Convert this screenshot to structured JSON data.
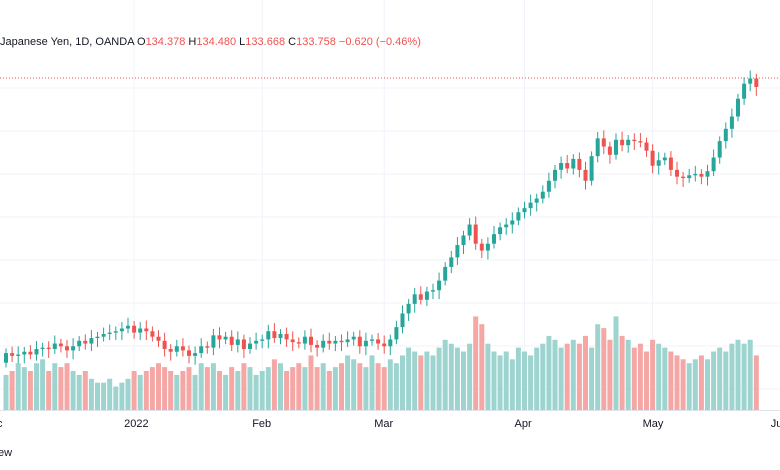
{
  "legend": {
    "symbol_text": "Japanese Yen, 1D, OANDA",
    "o_label": "O",
    "o_value": "134.378",
    "h_label": "H",
    "h_value": "134.480",
    "l_label": "L",
    "l_value": "133.668",
    "c_label": "C",
    "c_value": "133.758",
    "change": "−0.620 (−0.46%)"
  },
  "bottom_text": "ew",
  "colors": {
    "up": "#26a69a",
    "down": "#ef5350",
    "up_vol": "#9ed4cf",
    "down_vol": "#f4a7a5",
    "grid": "#f0f3fa",
    "price_line": "#ef5350"
  },
  "chart_data": {
    "type": "candlestick",
    "x_ticks": [
      {
        "label": "2022",
        "index": 21
      },
      {
        "label": "Feb",
        "index": 42
      },
      {
        "label": "Mar",
        "index": 62
      },
      {
        "label": "Apr",
        "index": 85
      },
      {
        "label": "May",
        "index": 106
      },
      {
        "label": "Jun",
        "index": 127
      }
    ],
    "first_tick_partial": "c",
    "last_close": 133.758,
    "grid": true,
    "volume_pane": true,
    "candles": [
      {
        "o": 113.6,
        "c": 114.3,
        "v": 9
      },
      {
        "o": 114.3,
        "c": 114.1,
        "v": 10
      },
      {
        "o": 114.1,
        "c": 114.2,
        "v": 12
      },
      {
        "o": 114.2,
        "c": 114.4,
        "v": 11
      },
      {
        "o": 114.4,
        "c": 114.2,
        "v": 10
      },
      {
        "o": 114.2,
        "c": 114.6,
        "v": 12
      },
      {
        "o": 114.6,
        "c": 114.7,
        "v": 13
      },
      {
        "o": 114.7,
        "c": 114.6,
        "v": 10
      },
      {
        "o": 114.6,
        "c": 115.0,
        "v": 12
      },
      {
        "o": 115.0,
        "c": 114.8,
        "v": 11
      },
      {
        "o": 114.8,
        "c": 114.5,
        "v": 12
      },
      {
        "o": 114.5,
        "c": 114.8,
        "v": 10
      },
      {
        "o": 114.8,
        "c": 115.2,
        "v": 9
      },
      {
        "o": 115.2,
        "c": 115.0,
        "v": 10
      },
      {
        "o": 115.0,
        "c": 115.4,
        "v": 8
      },
      {
        "o": 115.4,
        "c": 115.5,
        "v": 7
      },
      {
        "o": 115.5,
        "c": 115.7,
        "v": 7
      },
      {
        "o": 115.7,
        "c": 115.8,
        "v": 8
      },
      {
        "o": 115.8,
        "c": 115.9,
        "v": 6
      },
      {
        "o": 115.9,
        "c": 116.1,
        "v": 7
      },
      {
        "o": 116.1,
        "c": 116.3,
        "v": 8
      },
      {
        "o": 116.3,
        "c": 115.8,
        "v": 10
      },
      {
        "o": 115.8,
        "c": 116.1,
        "v": 9
      },
      {
        "o": 116.1,
        "c": 115.9,
        "v": 10
      },
      {
        "o": 115.9,
        "c": 115.5,
        "v": 11
      },
      {
        "o": 115.5,
        "c": 115.2,
        "v": 12
      },
      {
        "o": 115.2,
        "c": 114.6,
        "v": 11
      },
      {
        "o": 114.6,
        "c": 114.4,
        "v": 10
      },
      {
        "o": 114.4,
        "c": 114.8,
        "v": 9
      },
      {
        "o": 114.8,
        "c": 114.5,
        "v": 10
      },
      {
        "o": 114.5,
        "c": 114.1,
        "v": 11
      },
      {
        "o": 114.1,
        "c": 114.3,
        "v": 9
      },
      {
        "o": 114.3,
        "c": 114.8,
        "v": 12
      },
      {
        "o": 114.8,
        "c": 114.7,
        "v": 11
      },
      {
        "o": 114.7,
        "c": 115.6,
        "v": 12
      },
      {
        "o": 115.6,
        "c": 115.3,
        "v": 10
      },
      {
        "o": 115.3,
        "c": 115.5,
        "v": 9
      },
      {
        "o": 115.5,
        "c": 114.9,
        "v": 11
      },
      {
        "o": 114.9,
        "c": 115.3,
        "v": 10
      },
      {
        "o": 115.3,
        "c": 114.6,
        "v": 12
      },
      {
        "o": 114.6,
        "c": 115.0,
        "v": 11
      },
      {
        "o": 115.0,
        "c": 115.2,
        "v": 9
      },
      {
        "o": 115.2,
        "c": 115.3,
        "v": 10
      },
      {
        "o": 115.3,
        "c": 115.9,
        "v": 11
      },
      {
        "o": 115.9,
        "c": 115.4,
        "v": 13
      },
      {
        "o": 115.4,
        "c": 115.7,
        "v": 12
      },
      {
        "o": 115.7,
        "c": 115.3,
        "v": 10
      },
      {
        "o": 115.3,
        "c": 115.1,
        "v": 11
      },
      {
        "o": 115.1,
        "c": 115.0,
        "v": 12
      },
      {
        "o": 115.0,
        "c": 115.5,
        "v": 11
      },
      {
        "o": 115.5,
        "c": 114.9,
        "v": 14
      },
      {
        "o": 114.9,
        "c": 114.7,
        "v": 11
      },
      {
        "o": 114.7,
        "c": 115.2,
        "v": 12
      },
      {
        "o": 115.2,
        "c": 115.0,
        "v": 10
      },
      {
        "o": 115.0,
        "c": 115.2,
        "v": 11
      },
      {
        "o": 115.2,
        "c": 115.1,
        "v": 12
      },
      {
        "o": 115.1,
        "c": 115.3,
        "v": 14
      },
      {
        "o": 115.3,
        "c": 115.5,
        "v": 13
      },
      {
        "o": 115.5,
        "c": 114.8,
        "v": 12
      },
      {
        "o": 114.8,
        "c": 115.2,
        "v": 11
      },
      {
        "o": 115.2,
        "c": 115.3,
        "v": 14
      },
      {
        "o": 115.3,
        "c": 115.0,
        "v": 12
      },
      {
        "o": 115.0,
        "c": 114.8,
        "v": 11
      },
      {
        "o": 114.8,
        "c": 115.3,
        "v": 13
      },
      {
        "o": 115.3,
        "c": 116.2,
        "v": 12
      },
      {
        "o": 116.2,
        "c": 117.2,
        "v": 14
      },
      {
        "o": 117.2,
        "c": 117.9,
        "v": 16
      },
      {
        "o": 117.9,
        "c": 118.6,
        "v": 15
      },
      {
        "o": 118.6,
        "c": 118.2,
        "v": 14
      },
      {
        "o": 118.2,
        "c": 118.8,
        "v": 15
      },
      {
        "o": 118.8,
        "c": 118.9,
        "v": 14
      },
      {
        "o": 118.9,
        "c": 119.6,
        "v": 16
      },
      {
        "o": 119.6,
        "c": 120.6,
        "v": 18
      },
      {
        "o": 120.6,
        "c": 121.3,
        "v": 17
      },
      {
        "o": 121.3,
        "c": 122.2,
        "v": 16
      },
      {
        "o": 122.2,
        "c": 122.9,
        "v": 15
      },
      {
        "o": 122.9,
        "c": 123.7,
        "v": 17
      },
      {
        "o": 123.7,
        "c": 122.3,
        "v": 24
      },
      {
        "o": 122.3,
        "c": 121.8,
        "v": 22
      },
      {
        "o": 121.8,
        "c": 122.3,
        "v": 17
      },
      {
        "o": 122.3,
        "c": 123.0,
        "v": 15
      },
      {
        "o": 123.0,
        "c": 123.5,
        "v": 14
      },
      {
        "o": 123.5,
        "c": 123.7,
        "v": 15
      },
      {
        "o": 123.7,
        "c": 124.0,
        "v": 13
      },
      {
        "o": 124.0,
        "c": 124.6,
        "v": 16
      },
      {
        "o": 124.6,
        "c": 124.9,
        "v": 15
      },
      {
        "o": 124.9,
        "c": 125.3,
        "v": 14
      },
      {
        "o": 125.3,
        "c": 125.6,
        "v": 16
      },
      {
        "o": 125.6,
        "c": 126.1,
        "v": 17
      },
      {
        "o": 126.1,
        "c": 126.9,
        "v": 19
      },
      {
        "o": 126.9,
        "c": 127.7,
        "v": 18
      },
      {
        "o": 127.7,
        "c": 128.2,
        "v": 16
      },
      {
        "o": 128.2,
        "c": 127.8,
        "v": 17
      },
      {
        "o": 127.8,
        "c": 128.5,
        "v": 18
      },
      {
        "o": 128.5,
        "c": 127.7,
        "v": 17
      },
      {
        "o": 127.7,
        "c": 126.9,
        "v": 19
      },
      {
        "o": 126.9,
        "c": 128.7,
        "v": 16
      },
      {
        "o": 128.7,
        "c": 130.0,
        "v": 22
      },
      {
        "o": 130.0,
        "c": 129.4,
        "v": 21
      },
      {
        "o": 129.4,
        "c": 128.8,
        "v": 18
      },
      {
        "o": 128.8,
        "c": 129.9,
        "v": 24
      },
      {
        "o": 129.9,
        "c": 129.5,
        "v": 19
      },
      {
        "o": 129.5,
        "c": 129.9,
        "v": 18
      },
      {
        "o": 129.9,
        "c": 129.8,
        "v": 16
      },
      {
        "o": 129.8,
        "c": 129.7,
        "v": 17
      },
      {
        "o": 129.7,
        "c": 129.1,
        "v": 15
      },
      {
        "o": 129.1,
        "c": 128.0,
        "v": 18
      },
      {
        "o": 128.0,
        "c": 128.4,
        "v": 17
      },
      {
        "o": 128.4,
        "c": 128.6,
        "v": 16
      },
      {
        "o": 128.6,
        "c": 127.7,
        "v": 15
      },
      {
        "o": 127.7,
        "c": 127.2,
        "v": 14
      },
      {
        "o": 127.2,
        "c": 127.1,
        "v": 13
      },
      {
        "o": 127.1,
        "c": 127.3,
        "v": 12
      },
      {
        "o": 127.3,
        "c": 127.4,
        "v": 13
      },
      {
        "o": 127.4,
        "c": 127.2,
        "v": 14
      },
      {
        "o": 127.2,
        "c": 127.6,
        "v": 13
      },
      {
        "o": 127.6,
        "c": 128.6,
        "v": 15
      },
      {
        "o": 128.6,
        "c": 129.8,
        "v": 16
      },
      {
        "o": 129.8,
        "c": 130.7,
        "v": 15
      },
      {
        "o": 130.7,
        "c": 131.6,
        "v": 17
      },
      {
        "o": 131.6,
        "c": 132.9,
        "v": 18
      },
      {
        "o": 132.9,
        "c": 134.0,
        "v": 17
      },
      {
        "o": 134.0,
        "c": 134.378,
        "v": 18
      },
      {
        "o": 134.378,
        "c": 133.758,
        "v": 14
      }
    ]
  }
}
